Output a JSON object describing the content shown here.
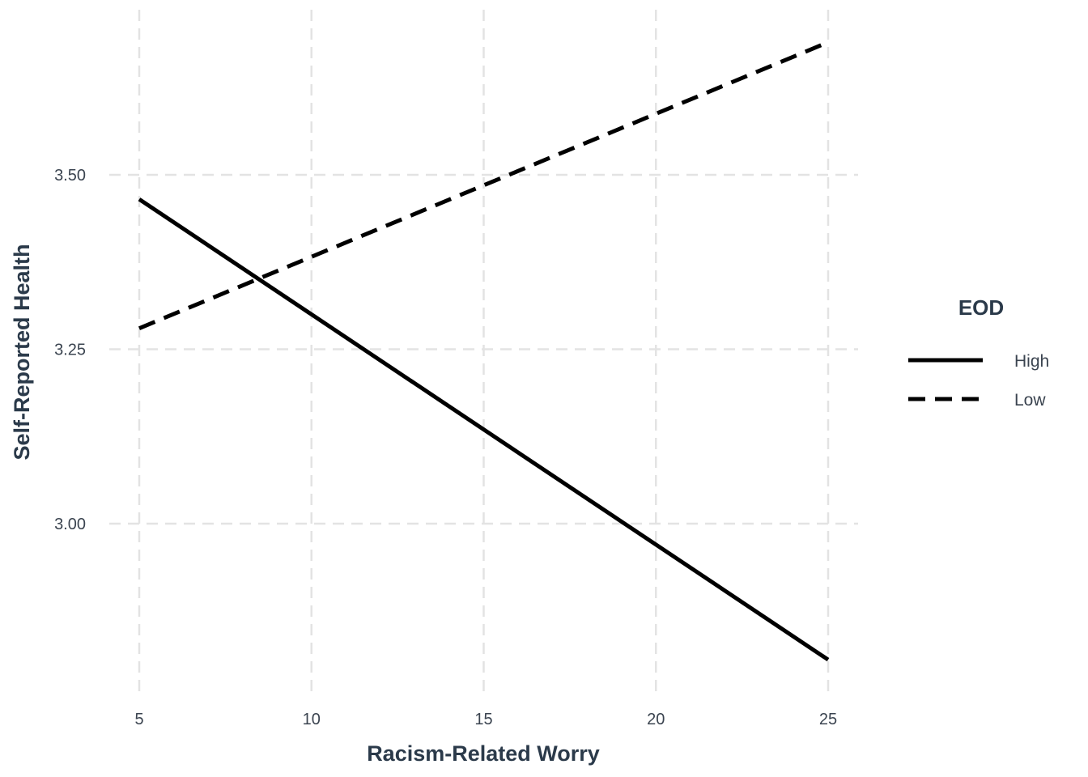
{
  "chart_data": {
    "type": "line",
    "xlabel": "Racism-Related Worry",
    "ylabel": "Self-Reported Health",
    "x": [
      5,
      25
    ],
    "x_ticks": [
      5,
      10,
      15,
      20,
      25
    ],
    "x_tick_labels": [
      "5",
      "10",
      "15",
      "20",
      "25"
    ],
    "y_ticks": [
      3.0,
      3.25,
      3.5
    ],
    "y_tick_labels": [
      "3.00",
      "3.25",
      "3.50"
    ],
    "xlim": [
      5,
      25
    ],
    "ylim": [
      2.8,
      3.7
    ],
    "grid": true,
    "legend": {
      "title": "EOD",
      "position": "right"
    },
    "series": [
      {
        "name": "High",
        "values": [
          3.465,
          2.805
        ],
        "line_style": "solid",
        "color": "#000000"
      },
      {
        "name": "Low",
        "values": [
          3.28,
          3.69
        ],
        "line_style": "dashed",
        "color": "#000000"
      }
    ]
  }
}
